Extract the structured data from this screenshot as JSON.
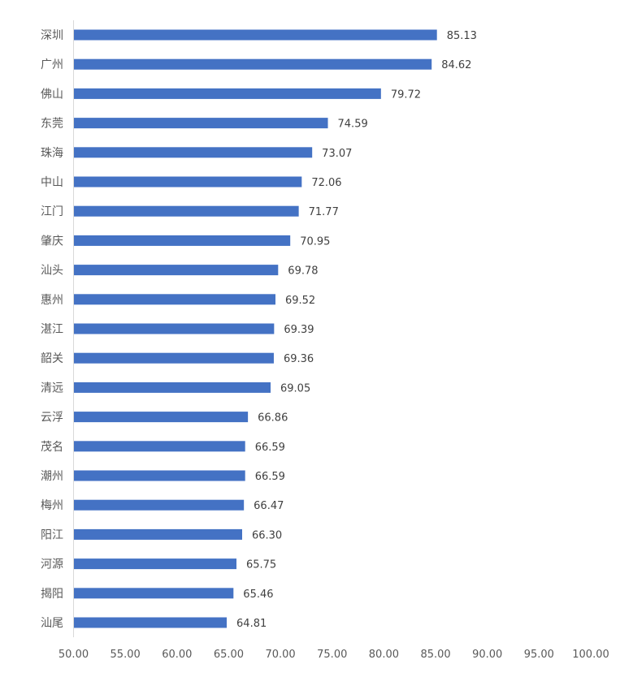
{
  "chart_data": {
    "type": "bar",
    "orientation": "horizontal",
    "title": "",
    "xlabel": "",
    "ylabel": "",
    "categories": [
      "深圳",
      "广州",
      "佛山",
      "东莞",
      "珠海",
      "中山",
      "江门",
      "肇庆",
      "汕头",
      "惠州",
      "湛江",
      "韶关",
      "清远",
      "云浮",
      "茂名",
      "潮州",
      "梅州",
      "阳江",
      "河源",
      "揭阳",
      "汕尾"
    ],
    "values": [
      85.13,
      84.62,
      79.72,
      74.59,
      73.07,
      72.06,
      71.77,
      70.95,
      69.78,
      69.52,
      69.39,
      69.36,
      69.05,
      66.86,
      66.59,
      66.59,
      66.47,
      66.3,
      65.75,
      65.46,
      64.81
    ],
    "value_labels": [
      "85.13",
      "84.62",
      "79.72",
      "74.59",
      "73.07",
      "72.06",
      "71.77",
      "70.95",
      "69.78",
      "69.52",
      "69.39",
      "69.36",
      "69.05",
      "66.86",
      "66.59",
      "66.59",
      "66.47",
      "66.30",
      "65.75",
      "65.46",
      "64.81"
    ],
    "xlim": [
      50,
      100
    ],
    "xticks": [
      "50.00",
      "55.00",
      "60.00",
      "65.00",
      "70.00",
      "75.00",
      "80.00",
      "85.00",
      "90.00",
      "95.00",
      "100.00"
    ],
    "grid": false,
    "legend": "none",
    "bar_color": "#4472C4"
  }
}
